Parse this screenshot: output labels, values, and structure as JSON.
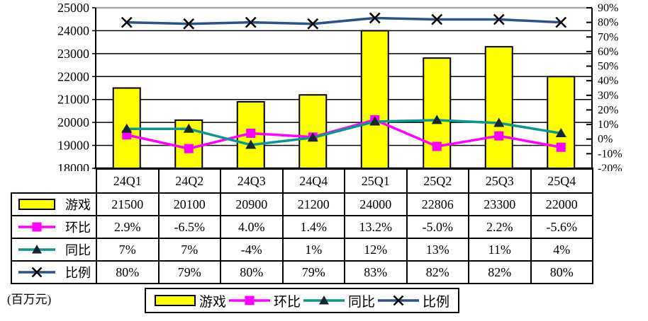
{
  "unit_label": "(百万元)",
  "colors": {
    "bar_fill": "#FFFF00",
    "bar_border": "#000000",
    "qoq_line": "#FF00FF",
    "yoy_line": "#0F968C",
    "ratio_line": "#2B5486",
    "dark_marker": "#15262E",
    "x_marker": "#000000",
    "grid": "#000000",
    "plot_top_border": "#A9A9A9"
  },
  "chart_data": {
    "type": "bar",
    "subtype": "combo-bar-line-dual-axis",
    "title": "",
    "xlabel": "",
    "ylabel_left": "百万元",
    "ylabel_right": "%",
    "grid": true,
    "legend_position": "bottom",
    "categories": [
      "24Q1",
      "24Q2",
      "24Q3",
      "24Q4",
      "25Q1",
      "25Q2",
      "25Q3",
      "25Q4"
    ],
    "left_axis": {
      "min": 18000,
      "max": 25000,
      "step": 1000,
      "tick_labels": [
        "18000",
        "19000",
        "20000",
        "21000",
        "22000",
        "23000",
        "24000",
        "25000"
      ]
    },
    "right_axis": {
      "min": -20,
      "max": 90,
      "step": 10,
      "tick_labels": [
        "-20%",
        "-10%",
        "0%",
        "10%",
        "20%",
        "30%",
        "40%",
        "50%",
        "60%",
        "70%",
        "80%",
        "90%"
      ]
    },
    "series": [
      {
        "key": "games",
        "name": "游戏",
        "type": "bar",
        "axis": "left",
        "color": "#FFFF00",
        "marker": "bar",
        "values": [
          21500,
          20100,
          20900,
          21200,
          24000,
          22806,
          23300,
          22000
        ],
        "display": [
          "21500",
          "20100",
          "20900",
          "21200",
          "24000",
          "22806",
          "23300",
          "22000"
        ]
      },
      {
        "key": "qoq",
        "name": "环比",
        "type": "line",
        "axis": "right",
        "color": "#FF00FF",
        "marker": "square",
        "marker_color": "#FF00FF",
        "values": [
          2.9,
          -6.5,
          4.0,
          1.4,
          13.2,
          -5.0,
          2.2,
          -5.6
        ],
        "display": [
          "2.9%",
          "-6.5%",
          "4.0%",
          "1.4%",
          "13.2%",
          "-5.0%",
          "2.2%",
          "-5.6%"
        ]
      },
      {
        "key": "yoy",
        "name": "同比",
        "type": "line",
        "axis": "right",
        "color": "#0F968C",
        "marker": "triangle",
        "marker_color": "#15262E",
        "values": [
          7,
          7,
          -4,
          1,
          12,
          13,
          11,
          4
        ],
        "display": [
          "7%",
          "7%",
          "-4%",
          "1%",
          "12%",
          "13%",
          "11%",
          "4%"
        ]
      },
      {
        "key": "ratio",
        "name": "比例",
        "type": "line",
        "axis": "right",
        "color": "#2B5486",
        "marker": "x",
        "marker_color": "#000000",
        "values": [
          80,
          79,
          80,
          79,
          83,
          82,
          82,
          80
        ],
        "display": [
          "80%",
          "79%",
          "80%",
          "79%",
          "83%",
          "82%",
          "82%",
          "80%"
        ]
      }
    ]
  }
}
